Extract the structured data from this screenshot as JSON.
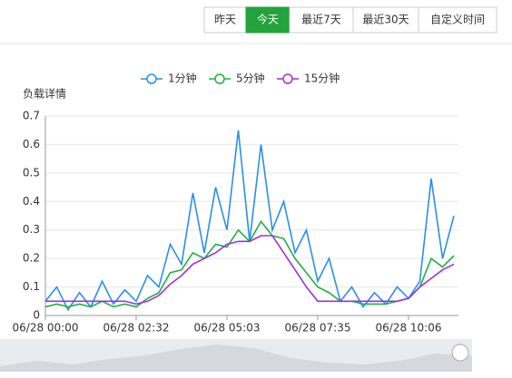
{
  "buttons": [
    "昨天",
    "今天",
    "最近7天",
    "最近30天",
    "自定义时间"
  ],
  "active_button": 1,
  "chart_data": {
    "type": "line",
    "y_label": "负载详情",
    "ylim": [
      0,
      0.7
    ],
    "yticks": [
      0,
      0.1,
      0.2,
      0.3,
      0.4,
      0.5,
      0.6,
      0.7
    ],
    "grid": true,
    "xlim": [
      0,
      36.4
    ],
    "xticks": [
      {
        "value": 0,
        "label": "06/28 00:00"
      },
      {
        "value": 8,
        "label": "06/28 02:32"
      },
      {
        "value": 16,
        "label": "06/28 05:03"
      },
      {
        "value": 24,
        "label": "06/28 07:35"
      },
      {
        "value": 32,
        "label": "06/28 10:06"
      }
    ],
    "series": [
      {
        "name": "1分钟",
        "color": "#2b8fe6",
        "values": [
          0.05,
          0.1,
          0.02,
          0.08,
          0.03,
          0.12,
          0.04,
          0.09,
          0.05,
          0.14,
          0.1,
          0.25,
          0.18,
          0.43,
          0.22,
          0.45,
          0.3,
          0.65,
          0.26,
          0.6,
          0.3,
          0.4,
          0.22,
          0.3,
          0.12,
          0.2,
          0.05,
          0.1,
          0.03,
          0.08,
          0.04,
          0.1,
          0.06,
          0.12,
          0.48,
          0.2,
          0.35
        ]
      },
      {
        "name": "5分钟",
        "color": "#1fb141",
        "values": [
          0.03,
          0.04,
          0.03,
          0.04,
          0.03,
          0.05,
          0.03,
          0.04,
          0.03,
          0.06,
          0.08,
          0.15,
          0.16,
          0.22,
          0.2,
          0.25,
          0.24,
          0.3,
          0.26,
          0.33,
          0.28,
          0.27,
          0.2,
          0.15,
          0.1,
          0.08,
          0.05,
          0.05,
          0.04,
          0.04,
          0.04,
          0.05,
          0.06,
          0.1,
          0.2,
          0.17,
          0.21
        ]
      },
      {
        "name": "15分钟",
        "color": "#9b30e6",
        "values": [
          0.05,
          0.05,
          0.05,
          0.05,
          0.05,
          0.05,
          0.05,
          0.05,
          0.04,
          0.05,
          0.07,
          0.11,
          0.14,
          0.18,
          0.2,
          0.22,
          0.25,
          0.26,
          0.26,
          0.28,
          0.28,
          0.22,
          0.16,
          0.1,
          0.05,
          0.05,
          0.05,
          0.05,
          0.05,
          0.05,
          0.05,
          0.05,
          0.06,
          0.1,
          0.13,
          0.16,
          0.18
        ]
      }
    ]
  }
}
